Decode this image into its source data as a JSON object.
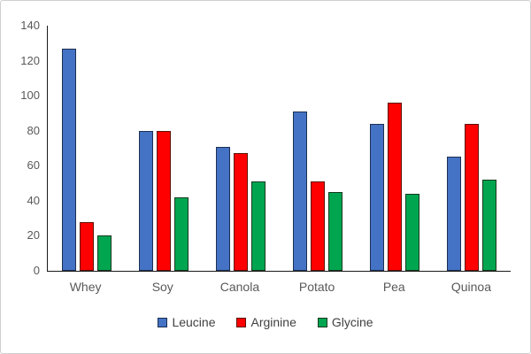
{
  "chart_data": {
    "type": "bar",
    "title": "",
    "xlabel": "",
    "ylabel": "",
    "categories": [
      "Whey",
      "Soy",
      "Canola",
      "Potato",
      "Pea",
      "Quinoa"
    ],
    "series": [
      {
        "name": "Leucine",
        "color": "#4472C4",
        "border_color": "#1b2f52",
        "values": [
          127,
          80,
          71,
          91,
          84,
          65
        ]
      },
      {
        "name": "Arginine",
        "color": "#FE0000",
        "border_color": "#5e0f00",
        "values": [
          28,
          80,
          67,
          51,
          96,
          84
        ]
      },
      {
        "name": "Glycine",
        "color": "#00A550",
        "border_color": "#123a1e",
        "values": [
          20,
          42,
          51,
          45,
          44,
          52
        ]
      }
    ],
    "ylim": [
      0,
      140
    ],
    "ytick_step": 20,
    "ytick_labels": [
      "0",
      "20",
      "40",
      "60",
      "80",
      "100",
      "120",
      "140"
    ],
    "grid": false,
    "legend_position": "bottom-center",
    "axis_color": "#1a1a1a",
    "tick_label_color": "#595959",
    "legend_text_color": "#404040",
    "background_color": "#ffffff",
    "frame_border_color": "#cfcfcf"
  }
}
